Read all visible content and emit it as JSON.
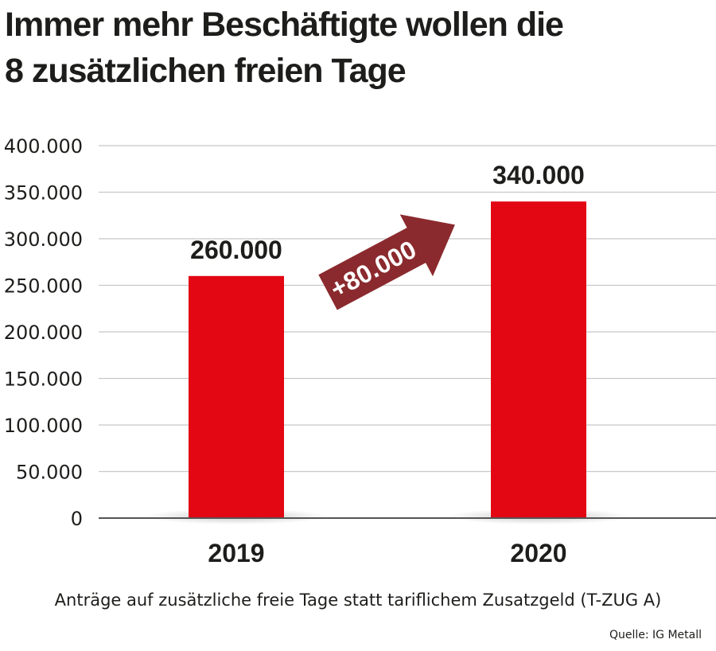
{
  "title": {
    "line1": "Immer mehr Beschäftigte wollen die",
    "line2": "8 zusätzlichen freien Tage"
  },
  "caption": "Anträge auf zusätzliche freie Tage statt tariflichem Zusatzgeld (T-ZUG A)",
  "source": "Quelle: IG Metall",
  "colors": {
    "bar": "#e30613",
    "arrow": "#8b2a2e",
    "grid": "#c8c8c8",
    "axis": "#555555"
  },
  "chart_data": {
    "type": "bar",
    "categories": [
      "2019",
      "2020"
    ],
    "values": [
      260000,
      340000
    ],
    "value_labels": [
      "260.000",
      "340.000"
    ],
    "ylim": [
      0,
      400000
    ],
    "yticks": [
      0,
      50000,
      100000,
      150000,
      200000,
      250000,
      300000,
      350000,
      400000
    ],
    "ytick_labels": [
      "0",
      "50.000",
      "100.000",
      "150.000",
      "200.000",
      "250.000",
      "300.000",
      "350.000",
      "400.000"
    ],
    "grid": true,
    "annotation": "+80.000",
    "xlabel": "",
    "ylabel": ""
  }
}
